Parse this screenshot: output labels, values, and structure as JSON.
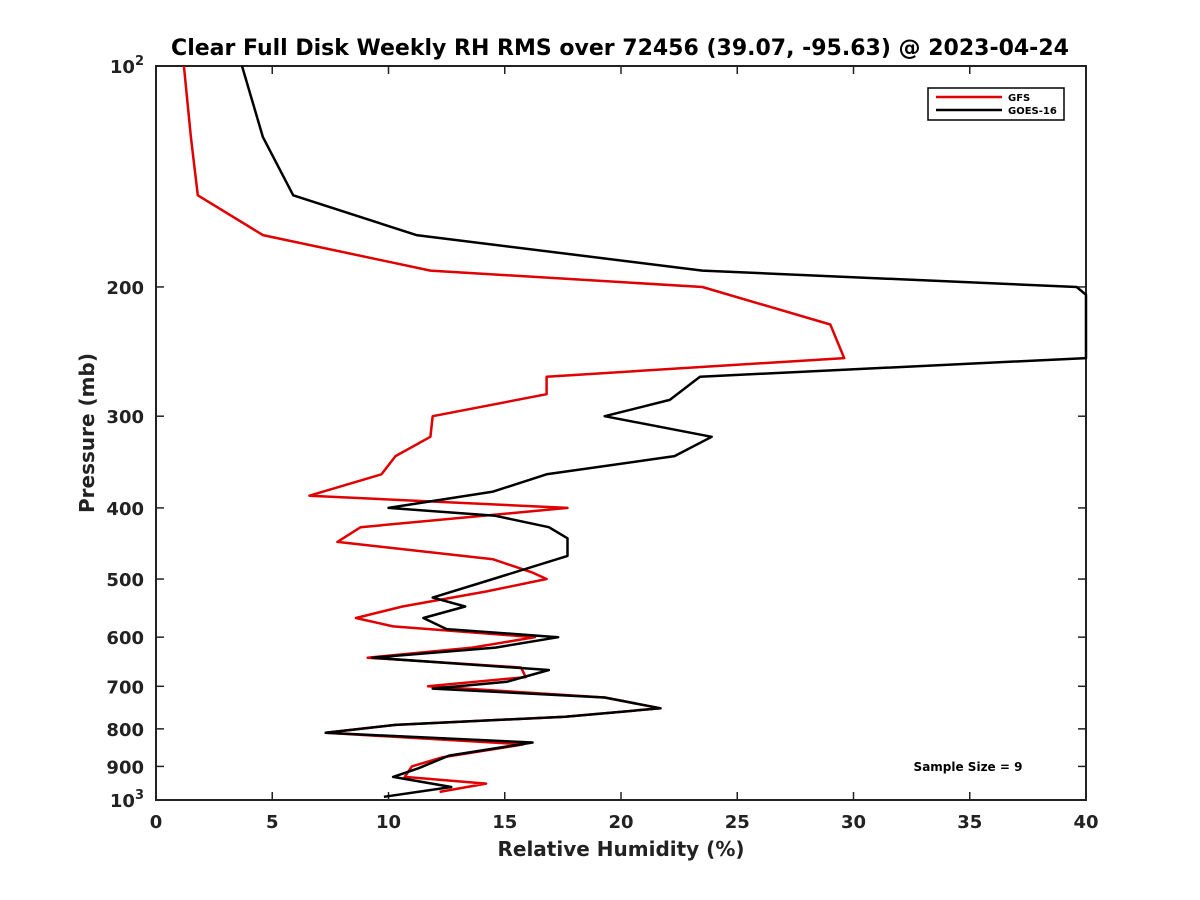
{
  "chart_data": {
    "type": "line",
    "title": "Clear Full Disk Weekly RH RMS over 72456 (39.07, -95.63) @ 2023-04-24",
    "xlabel": "Relative Humidity (%)",
    "ylabel": "Pressure (mb)",
    "xlim": [
      0,
      40
    ],
    "ylim": [
      1000,
      100
    ],
    "yscale": "log",
    "x_ticks": [
      0,
      5,
      10,
      15,
      20,
      25,
      30,
      35,
      40
    ],
    "y_ticks": [
      {
        "value": 100,
        "label": "10",
        "sup": "2"
      },
      {
        "value": 200,
        "label": "200"
      },
      {
        "value": 300,
        "label": "300"
      },
      {
        "value": 400,
        "label": "400"
      },
      {
        "value": 500,
        "label": "500"
      },
      {
        "value": 600,
        "label": "600"
      },
      {
        "value": 700,
        "label": "700"
      },
      {
        "value": 800,
        "label": "800"
      },
      {
        "value": 900,
        "label": "900"
      },
      {
        "value": 1000,
        "label": "10",
        "sup": "3"
      }
    ],
    "legend_position": "top-right",
    "annotation": "Sample Size = 9",
    "series": [
      {
        "name": "GFS",
        "color": "#e00000",
        "points": [
          [
            1.2,
            100
          ],
          [
            1.5,
            125
          ],
          [
            1.8,
            150
          ],
          [
            4.6,
            170
          ],
          [
            11.8,
            190
          ],
          [
            23.5,
            200
          ],
          [
            29.0,
            225
          ],
          [
            29.6,
            250
          ],
          [
            16.8,
            265
          ],
          [
            16.8,
            280
          ],
          [
            11.9,
            300
          ],
          [
            11.8,
            320
          ],
          [
            10.3,
            340
          ],
          [
            9.7,
            360
          ],
          [
            6.6,
            385
          ],
          [
            17.7,
            400
          ],
          [
            8.8,
            425
          ],
          [
            7.8,
            445
          ],
          [
            14.5,
            470
          ],
          [
            16.2,
            490
          ],
          [
            16.8,
            500
          ],
          [
            14.2,
            520
          ],
          [
            10.6,
            545
          ],
          [
            8.6,
            565
          ],
          [
            10.2,
            580
          ],
          [
            16.3,
            600
          ],
          [
            13.6,
            620
          ],
          [
            9.1,
            640
          ],
          [
            15.7,
            660
          ],
          [
            15.9,
            680
          ],
          [
            11.7,
            700
          ],
          [
            19.3,
            725
          ],
          [
            21.7,
            750
          ],
          [
            17.6,
            770
          ],
          [
            10.3,
            790
          ],
          [
            7.3,
            810
          ],
          [
            15.8,
            840
          ],
          [
            12.3,
            875
          ],
          [
            11.0,
            900
          ],
          [
            10.7,
            930
          ],
          [
            14.2,
            950
          ],
          [
            12.2,
            975
          ]
        ]
      },
      {
        "name": "GOES-16",
        "color": "#000000",
        "points": [
          [
            3.7,
            100
          ],
          [
            4.6,
            125
          ],
          [
            5.9,
            150
          ],
          [
            11.2,
            170
          ],
          [
            23.5,
            190
          ],
          [
            39.6,
            200
          ],
          [
            40.0,
            205
          ],
          [
            40.0,
            250
          ],
          [
            23.4,
            265
          ],
          [
            22.1,
            285
          ],
          [
            19.3,
            300
          ],
          [
            23.9,
            320
          ],
          [
            22.3,
            340
          ],
          [
            16.8,
            360
          ],
          [
            14.5,
            380
          ],
          [
            10.0,
            400
          ],
          [
            14.6,
            410
          ],
          [
            16.9,
            425
          ],
          [
            17.7,
            440
          ],
          [
            17.7,
            465
          ],
          [
            14.5,
            500
          ],
          [
            11.9,
            530
          ],
          [
            13.3,
            545
          ],
          [
            11.5,
            565
          ],
          [
            12.5,
            585
          ],
          [
            17.3,
            600
          ],
          [
            14.6,
            620
          ],
          [
            9.3,
            640
          ],
          [
            16.9,
            665
          ],
          [
            15.1,
            690
          ],
          [
            11.9,
            705
          ],
          [
            19.3,
            725
          ],
          [
            21.7,
            750
          ],
          [
            17.6,
            770
          ],
          [
            10.3,
            790
          ],
          [
            7.3,
            810
          ],
          [
            16.2,
            835
          ],
          [
            12.6,
            870
          ],
          [
            11.3,
            905
          ],
          [
            10.2,
            930
          ],
          [
            12.7,
            960
          ],
          [
            9.8,
            990
          ]
        ]
      }
    ]
  }
}
